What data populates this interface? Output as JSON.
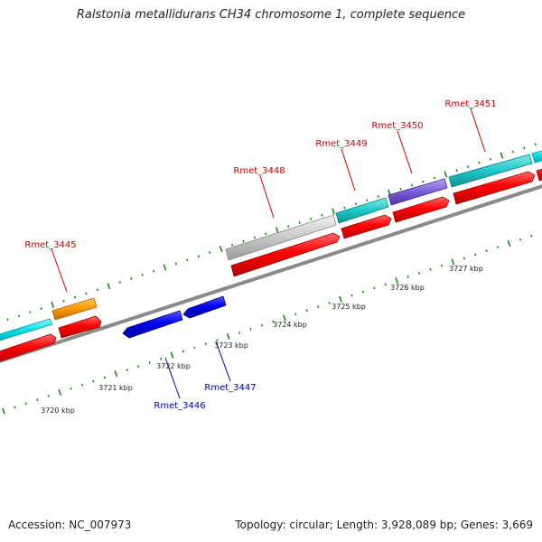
{
  "title": "Ralstonia metallidurans CH34 chromosome 1, complete sequence",
  "accession": "Accession: NC_007973",
  "summary": "Topology: circular; Length: 3,928,089 bp; Genes: 3,669",
  "colors": {
    "forward_gene_label": "#cc0000",
    "reverse_gene_label": "#0000aa",
    "tick": "#1a8a1a",
    "backbone": "#8a8a8a",
    "cds": "#ff0000",
    "reverse_gene": "#0000ee",
    "cog_cyan": "#00d8e0",
    "cog_teal": "#1ec8c8",
    "cog_orange": "#ff9900",
    "cog_purple": "#7a5cd6",
    "cog_gray": "#c8c8c8"
  },
  "kbp_labels": [
    "3720 kbp",
    "3721 kbp",
    "3722 kbp",
    "3723 kbp",
    "3724 kbp",
    "3725 kbp",
    "3726 kbp",
    "3727 kbp"
  ],
  "forward_gene_labels": [
    "Rmet_3445",
    "Rmet_3448",
    "Rmet_3449",
    "Rmet_3450",
    "Rmet_3451"
  ],
  "reverse_gene_labels": [
    "Rmet_3446",
    "Rmet_3447"
  ]
}
